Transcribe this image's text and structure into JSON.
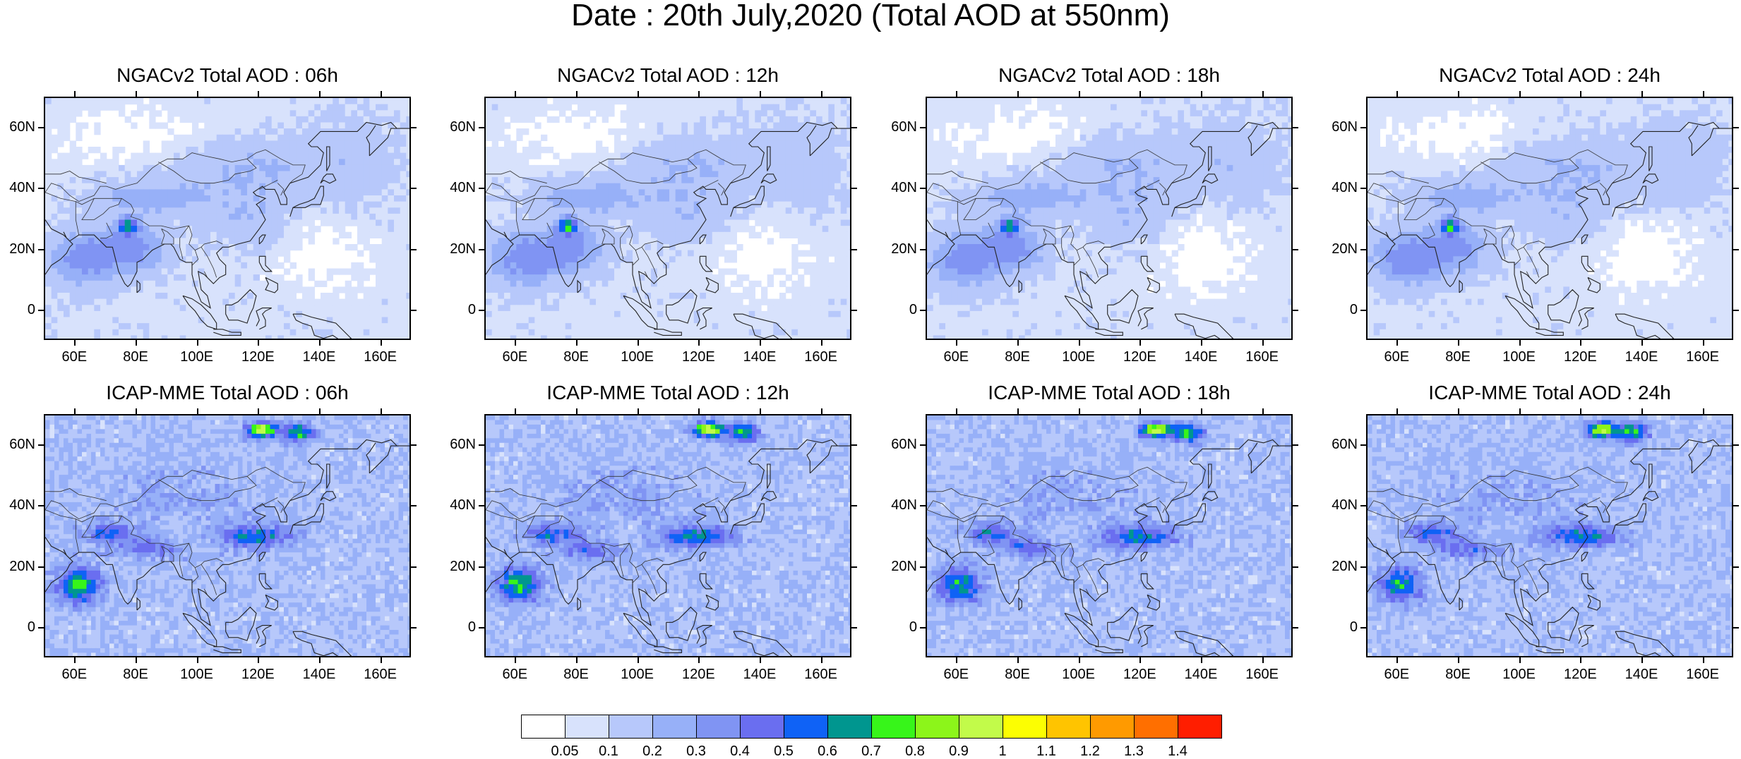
{
  "title": "Date : 20th July,2020 (Total AOD at 550nm)",
  "panels": [
    {
      "title": "NGACv2 Total AOD : 06h",
      "model": "NGACv2",
      "hour": "06h"
    },
    {
      "title": "NGACv2 Total AOD : 12h",
      "model": "NGACv2",
      "hour": "12h"
    },
    {
      "title": "NGACv2 Total AOD : 18h",
      "model": "NGACv2",
      "hour": "18h"
    },
    {
      "title": "NGACv2 Total AOD : 24h",
      "model": "NGACv2",
      "hour": "24h"
    },
    {
      "title": "ICAP-MME Total AOD : 06h",
      "model": "ICAP-MME",
      "hour": "06h"
    },
    {
      "title": "ICAP-MME Total AOD : 12h",
      "model": "ICAP-MME",
      "hour": "12h"
    },
    {
      "title": "ICAP-MME Total AOD : 18h",
      "model": "ICAP-MME",
      "hour": "18h"
    },
    {
      "title": "ICAP-MME Total AOD : 24h",
      "model": "ICAP-MME",
      "hour": "24h"
    }
  ],
  "axes": {
    "lon_range": [
      50,
      170
    ],
    "lat_range": [
      -10,
      70
    ],
    "x_ticks": [
      "60E",
      "80E",
      "100E",
      "120E",
      "140E",
      "160E"
    ],
    "x_tick_values": [
      60,
      80,
      100,
      120,
      140,
      160
    ],
    "y_ticks": [
      "60N",
      "40N",
      "20N",
      "0"
    ],
    "y_tick_values": [
      60,
      40,
      20,
      0
    ]
  },
  "colorbar": {
    "labels": [
      "0.05",
      "0.1",
      "0.2",
      "0.3",
      "0.4",
      "0.5",
      "0.6",
      "0.7",
      "0.8",
      "0.9",
      "1",
      "1.1",
      "1.2",
      "1.3",
      "1.4"
    ],
    "colors": [
      "#ffffff",
      "#d8e2fc",
      "#b7c8fb",
      "#97b0f8",
      "#8094f3",
      "#6a6ef0",
      "#0f62f6",
      "#00968f",
      "#37f51a",
      "#8cf51a",
      "#c2fb4a",
      "#fcfe02",
      "#ffc400",
      "#ff9a00",
      "#ff6f00",
      "#ff1e00"
    ]
  }
}
